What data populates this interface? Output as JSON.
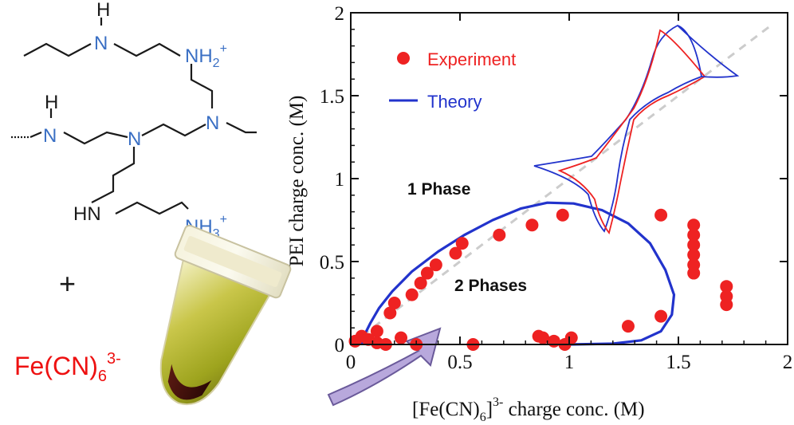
{
  "molecule": {
    "atoms": [
      {
        "id": "h1",
        "text": "H"
      },
      {
        "id": "n1",
        "text": "N"
      },
      {
        "id": "nh2",
        "text": "NH"
      },
      {
        "id": "nh2_sub",
        "text": "2"
      },
      {
        "id": "nh2_sup",
        "text": "+"
      },
      {
        "id": "h2",
        "text": "H"
      },
      {
        "id": "n2",
        "text": "N"
      },
      {
        "id": "n3",
        "text": "N"
      },
      {
        "id": "n4",
        "text": "N"
      },
      {
        "id": "hn",
        "text": "HN"
      },
      {
        "id": "nh3",
        "text": "NH"
      },
      {
        "id": "nh3_sub",
        "text": "3"
      },
      {
        "id": "nh3_sup",
        "text": "+"
      }
    ],
    "plus_sign": "+",
    "anion": {
      "base": "Fe(CN)",
      "sub": "6",
      "sup": "3-"
    }
  },
  "colors": {
    "experiment": "#ee2222",
    "theory": "#2233cc",
    "nitrogen": "#3a6fc4",
    "dashed": "#cccccc",
    "arrow": "#b8a8dc",
    "anion_text": "#ee1111"
  },
  "chart_data": {
    "type": "scatter",
    "xlabel": {
      "open": "[Fe(CN)",
      "sub": "6",
      "close": "]",
      "sup": "3-",
      "rest": " charge conc. (M)"
    },
    "ylabel": "PEI charge conc. (M)",
    "xlim": [
      0,
      2
    ],
    "ylim": [
      0,
      2
    ],
    "xticks": [
      0,
      0.5,
      1,
      1.5,
      2
    ],
    "xtick_labels": [
      "0",
      "0.5",
      "1",
      "1.5",
      "2"
    ],
    "yticks": [
      0,
      0.5,
      1,
      1.5,
      2
    ],
    "ytick_labels": [
      "0",
      "0.5",
      "1",
      "1.5",
      "2"
    ],
    "grid": false,
    "legend": {
      "position": "top-left",
      "entries": [
        {
          "name": "Experiment",
          "marker": "circle",
          "color": "#ee2222"
        },
        {
          "name": "Theory",
          "marker": "line",
          "color": "#2233cc"
        }
      ]
    },
    "annotations": [
      {
        "text": "1 Phase",
        "x": 0.21,
        "y": 1.07
      },
      {
        "text": "2 Phases",
        "x": 0.35,
        "y": 0.37
      }
    ],
    "series": [
      {
        "name": "Experiment",
        "type": "scatter",
        "points": [
          [
            0.02,
            0.02
          ],
          [
            0.05,
            0.05
          ],
          [
            0.08,
            0.03
          ],
          [
            0.12,
            0.08
          ],
          [
            0.12,
            0.01
          ],
          [
            0.16,
            0.0
          ],
          [
            0.18,
            0.19
          ],
          [
            0.2,
            0.25
          ],
          [
            0.23,
            0.04
          ],
          [
            0.28,
            0.3
          ],
          [
            0.3,
            0.0
          ],
          [
            0.32,
            0.37
          ],
          [
            0.35,
            0.43
          ],
          [
            0.39,
            0.48
          ],
          [
            0.48,
            0.55
          ],
          [
            0.51,
            0.61
          ],
          [
            0.56,
            0.0
          ],
          [
            0.68,
            0.66
          ],
          [
            0.83,
            0.72
          ],
          [
            0.86,
            0.05
          ],
          [
            0.88,
            0.04
          ],
          [
            0.93,
            0.02
          ],
          [
            0.97,
            0.78
          ],
          [
            0.98,
            0.0
          ],
          [
            1.01,
            0.04
          ],
          [
            1.27,
            0.11
          ],
          [
            1.42,
            0.17
          ],
          [
            1.42,
            0.78
          ],
          [
            1.57,
            0.72
          ],
          [
            1.57,
            0.66
          ],
          [
            1.57,
            0.6
          ],
          [
            1.57,
            0.54
          ],
          [
            1.57,
            0.48
          ],
          [
            1.57,
            0.43
          ],
          [
            1.72,
            0.35
          ],
          [
            1.72,
            0.29
          ],
          [
            1.72,
            0.24
          ]
        ]
      },
      {
        "name": "Theory",
        "type": "line",
        "points": [
          [
            0.05,
            0.0
          ],
          [
            0.06,
            0.05
          ],
          [
            0.09,
            0.13
          ],
          [
            0.13,
            0.22
          ],
          [
            0.19,
            0.32
          ],
          [
            0.28,
            0.44
          ],
          [
            0.4,
            0.56
          ],
          [
            0.52,
            0.66
          ],
          [
            0.65,
            0.75
          ],
          [
            0.78,
            0.82
          ],
          [
            0.9,
            0.855
          ],
          [
            1.02,
            0.85
          ],
          [
            1.15,
            0.81
          ],
          [
            1.27,
            0.73
          ],
          [
            1.37,
            0.61
          ],
          [
            1.44,
            0.45
          ],
          [
            1.48,
            0.3
          ],
          [
            1.47,
            0.18
          ],
          [
            1.42,
            0.08
          ],
          [
            1.33,
            0.025
          ],
          [
            1.2,
            0.005
          ],
          [
            1.0,
            0.0
          ]
        ]
      },
      {
        "name": "",
        "type": "dashed-diagonal",
        "points": [
          [
            0,
            0
          ],
          [
            1.93,
            1.93
          ]
        ]
      }
    ]
  }
}
